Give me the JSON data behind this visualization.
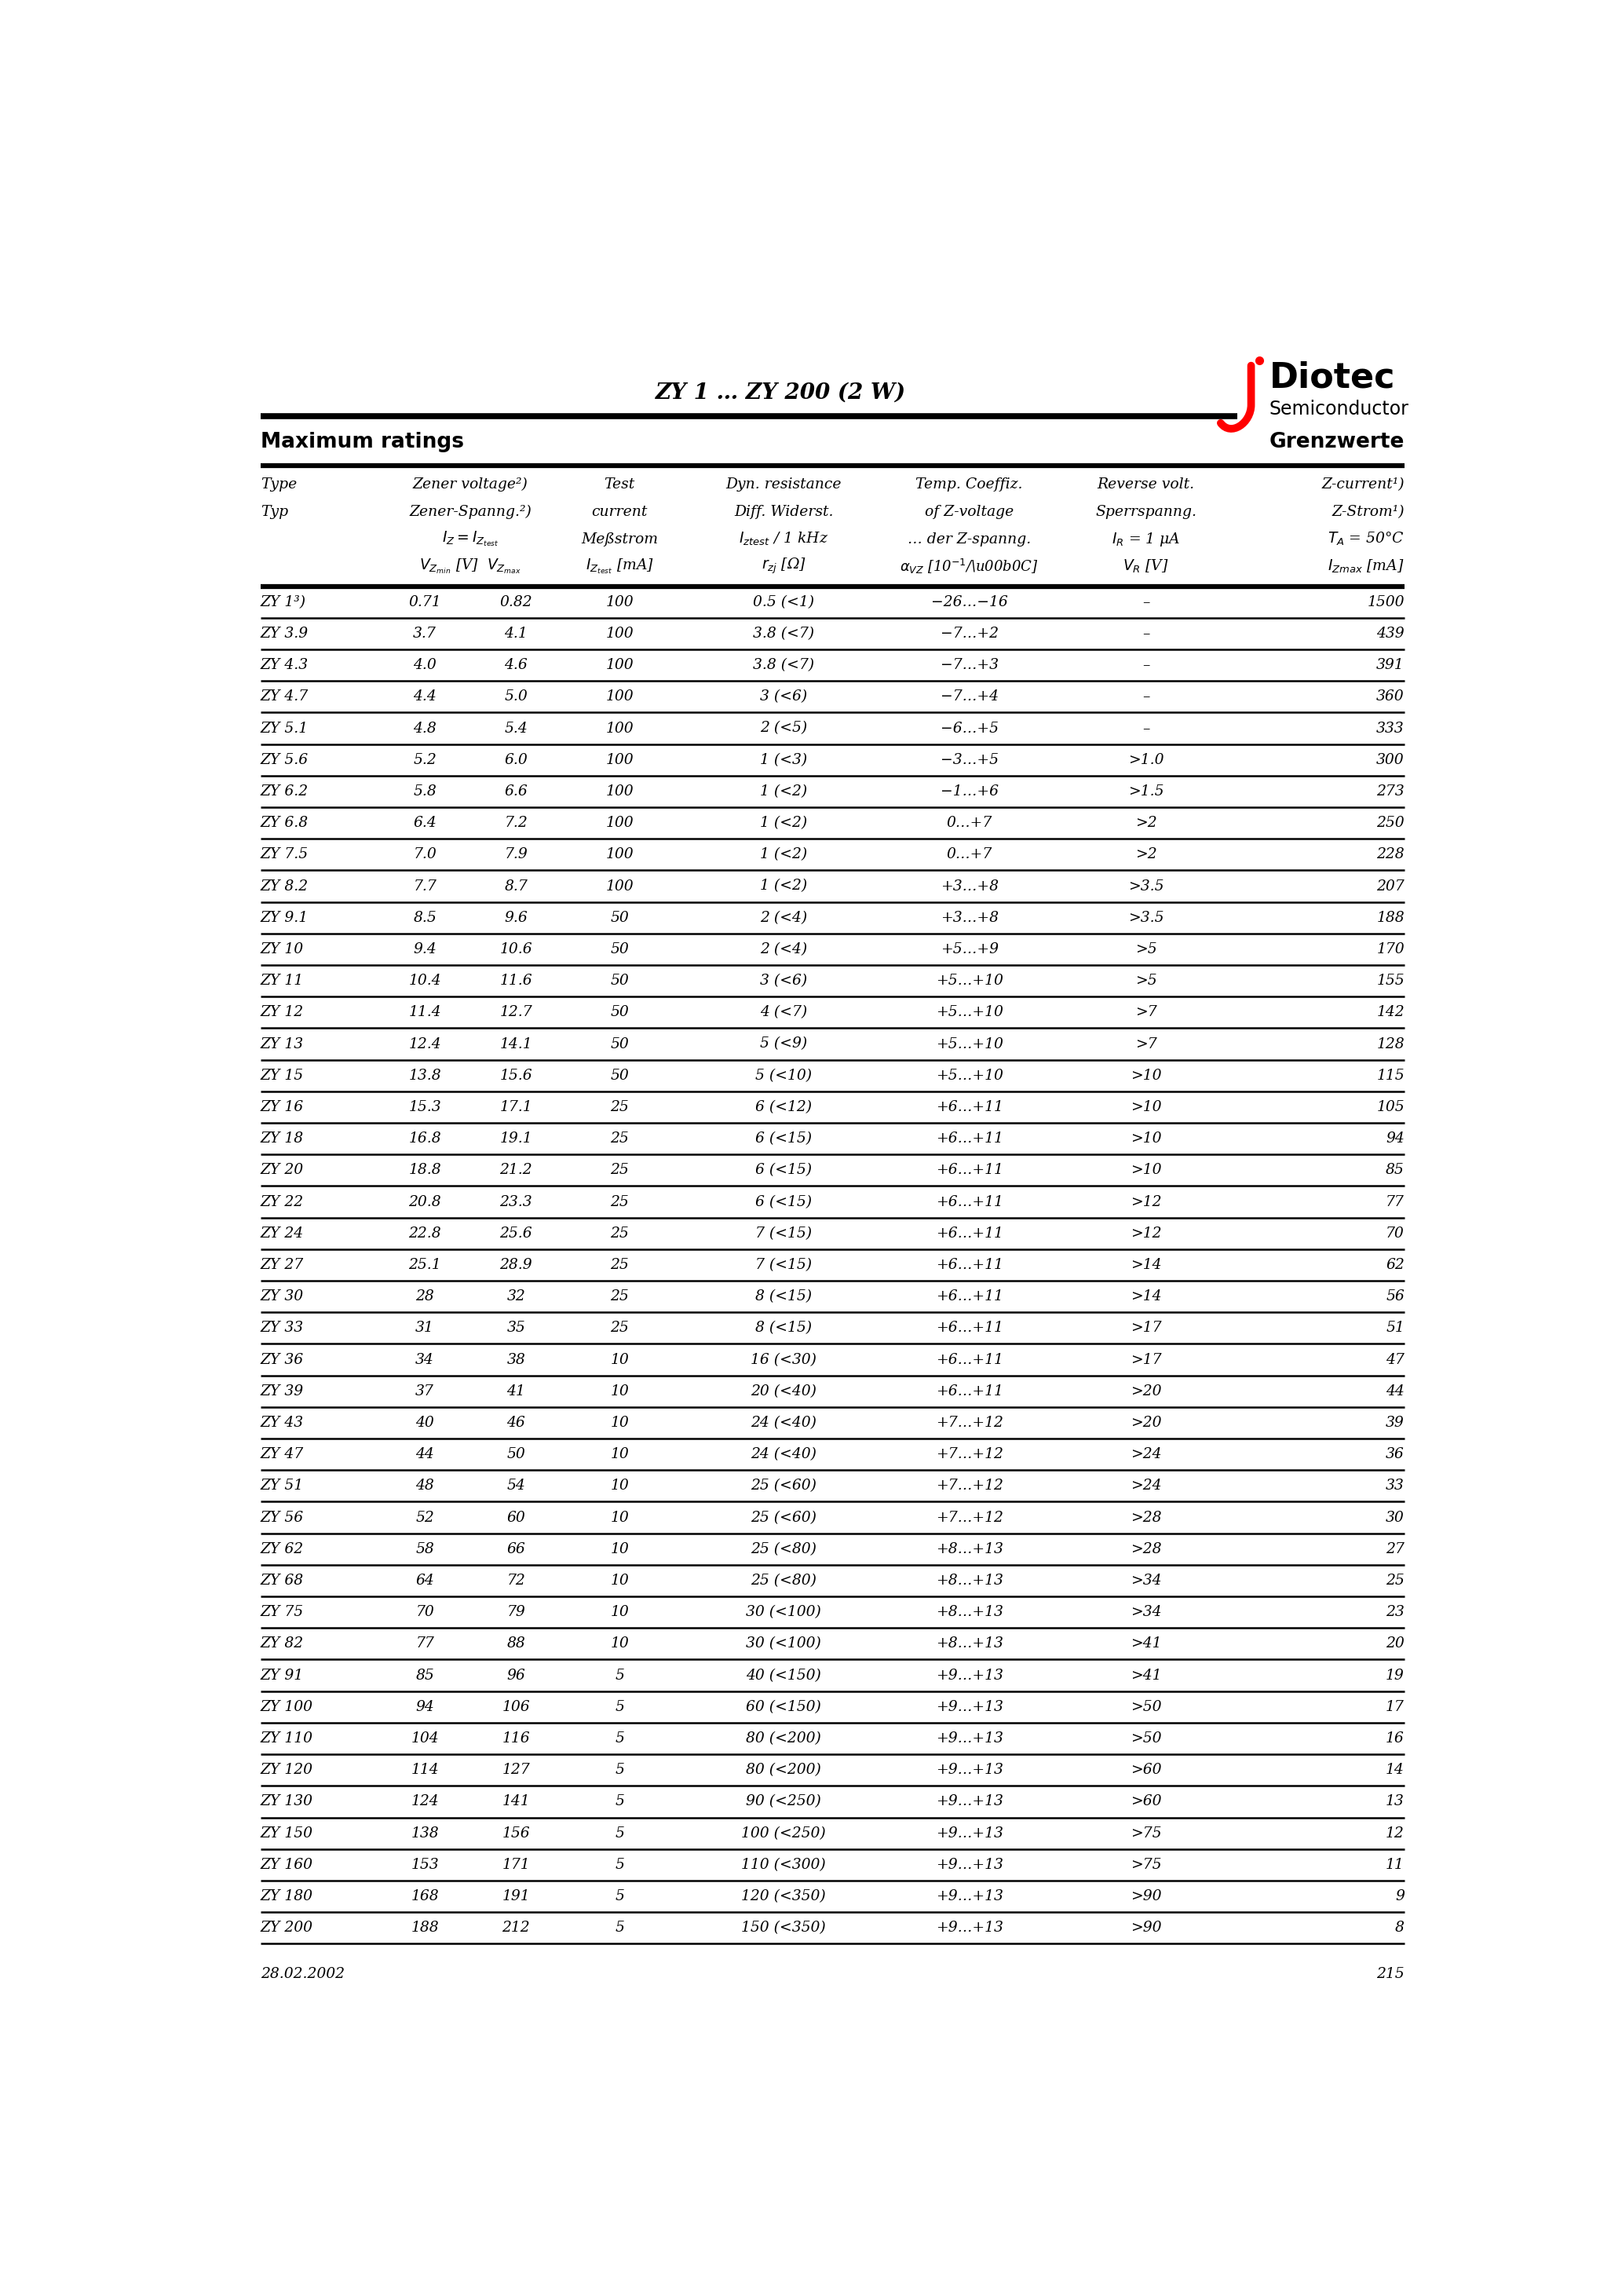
{
  "title": "ZY 1 … ZY 200 (2 W)",
  "header_left": "Maximum ratings",
  "header_right": "Grenzwerte",
  "rows": [
    [
      "ZY 1³)",
      "0.71",
      "0.82",
      "100",
      "0.5 (<1)",
      "−26…−16",
      "–",
      "1500"
    ],
    [
      "ZY 3.9",
      "3.7",
      "4.1",
      "100",
      "3.8 (<7)",
      "−7…+2",
      "–",
      "439"
    ],
    [
      "ZY 4.3",
      "4.0",
      "4.6",
      "100",
      "3.8 (<7)",
      "−7…+3",
      "–",
      "391"
    ],
    [
      "ZY 4.7",
      "4.4",
      "5.0",
      "100",
      "3 (<6)",
      "−7…+4",
      "–",
      "360"
    ],
    [
      "ZY 5.1",
      "4.8",
      "5.4",
      "100",
      "2 (<5)",
      "−6…+5",
      "–",
      "333"
    ],
    [
      "ZY 5.6",
      "5.2",
      "6.0",
      "100",
      "1 (<3)",
      "−3…+5",
      ">1.0",
      "300"
    ],
    [
      "ZY 6.2",
      "5.8",
      "6.6",
      "100",
      "1 (<2)",
      "−1…+6",
      ">1.5",
      "273"
    ],
    [
      "ZY 6.8",
      "6.4",
      "7.2",
      "100",
      "1 (<2)",
      "0…+7",
      ">2",
      "250"
    ],
    [
      "ZY 7.5",
      "7.0",
      "7.9",
      "100",
      "1 (<2)",
      "0…+7",
      ">2",
      "228"
    ],
    [
      "ZY 8.2",
      "7.7",
      "8.7",
      "100",
      "1 (<2)",
      "+3…+8",
      ">3.5",
      "207"
    ],
    [
      "ZY 9.1",
      "8.5",
      "9.6",
      "50",
      "2 (<4)",
      "+3…+8",
      ">3.5",
      "188"
    ],
    [
      "ZY 10",
      "9.4",
      "10.6",
      "50",
      "2 (<4)",
      "+5…+9",
      ">5",
      "170"
    ],
    [
      "ZY 11",
      "10.4",
      "11.6",
      "50",
      "3 (<6)",
      "+5…+10",
      ">5",
      "155"
    ],
    [
      "ZY 12",
      "11.4",
      "12.7",
      "50",
      "4 (<7)",
      "+5…+10",
      ">7",
      "142"
    ],
    [
      "ZY 13",
      "12.4",
      "14.1",
      "50",
      "5 (<9)",
      "+5…+10",
      ">7",
      "128"
    ],
    [
      "ZY 15",
      "13.8",
      "15.6",
      "50",
      "5 (<10)",
      "+5…+10",
      ">10",
      "115"
    ],
    [
      "ZY 16",
      "15.3",
      "17.1",
      "25",
      "6 (<12)",
      "+6…+11",
      ">10",
      "105"
    ],
    [
      "ZY 18",
      "16.8",
      "19.1",
      "25",
      "6 (<15)",
      "+6…+11",
      ">10",
      "94"
    ],
    [
      "ZY 20",
      "18.8",
      "21.2",
      "25",
      "6 (<15)",
      "+6…+11",
      ">10",
      "85"
    ],
    [
      "ZY 22",
      "20.8",
      "23.3",
      "25",
      "6 (<15)",
      "+6…+11",
      ">12",
      "77"
    ],
    [
      "ZY 24",
      "22.8",
      "25.6",
      "25",
      "7 (<15)",
      "+6…+11",
      ">12",
      "70"
    ],
    [
      "ZY 27",
      "25.1",
      "28.9",
      "25",
      "7 (<15)",
      "+6…+11",
      ">14",
      "62"
    ],
    [
      "ZY 30",
      "28",
      "32",
      "25",
      "8 (<15)",
      "+6…+11",
      ">14",
      "56"
    ],
    [
      "ZY 33",
      "31",
      "35",
      "25",
      "8 (<15)",
      "+6…+11",
      ">17",
      "51"
    ],
    [
      "ZY 36",
      "34",
      "38",
      "10",
      "16 (<30)",
      "+6…+11",
      ">17",
      "47"
    ],
    [
      "ZY 39",
      "37",
      "41",
      "10",
      "20 (<40)",
      "+6…+11",
      ">20",
      "44"
    ],
    [
      "ZY 43",
      "40",
      "46",
      "10",
      "24 (<40)",
      "+7…+12",
      ">20",
      "39"
    ],
    [
      "ZY 47",
      "44",
      "50",
      "10",
      "24 (<40)",
      "+7…+12",
      ">24",
      "36"
    ],
    [
      "ZY 51",
      "48",
      "54",
      "10",
      "25 (<60)",
      "+7…+12",
      ">24",
      "33"
    ],
    [
      "ZY 56",
      "52",
      "60",
      "10",
      "25 (<60)",
      "+7…+12",
      ">28",
      "30"
    ],
    [
      "ZY 62",
      "58",
      "66",
      "10",
      "25 (<80)",
      "+8…+13",
      ">28",
      "27"
    ],
    [
      "ZY 68",
      "64",
      "72",
      "10",
      "25 (<80)",
      "+8…+13",
      ">34",
      "25"
    ],
    [
      "ZY 75",
      "70",
      "79",
      "10",
      "30 (<100)",
      "+8…+13",
      ">34",
      "23"
    ],
    [
      "ZY 82",
      "77",
      "88",
      "10",
      "30 (<100)",
      "+8…+13",
      ">41",
      "20"
    ],
    [
      "ZY 91",
      "85",
      "96",
      "5",
      "40 (<150)",
      "+9…+13",
      ">41",
      "19"
    ],
    [
      "ZY 100",
      "94",
      "106",
      "5",
      "60 (<150)",
      "+9…+13",
      ">50",
      "17"
    ],
    [
      "ZY 110",
      "104",
      "116",
      "5",
      "80 (<200)",
      "+9…+13",
      ">50",
      "16"
    ],
    [
      "ZY 120",
      "114",
      "127",
      "5",
      "80 (<200)",
      "+9…+13",
      ">60",
      "14"
    ],
    [
      "ZY 130",
      "124",
      "141",
      "5",
      "90 (<250)",
      "+9…+13",
      ">60",
      "13"
    ],
    [
      "ZY 150",
      "138",
      "156",
      "5",
      "100 (<250)",
      "+9…+13",
      ">75",
      "12"
    ],
    [
      "ZY 160",
      "153",
      "171",
      "5",
      "110 (<300)",
      "+9…+13",
      ">75",
      "11"
    ],
    [
      "ZY 180",
      "168",
      "191",
      "5",
      "120 (<350)",
      "+9…+13",
      ">90",
      "9"
    ],
    [
      "ZY 200",
      "188",
      "212",
      "5",
      "150 (<350)",
      "+9…+13",
      ">90",
      "8"
    ]
  ],
  "footer_date": "28.02.2002",
  "footer_page": "215",
  "bg_color": "#ffffff"
}
